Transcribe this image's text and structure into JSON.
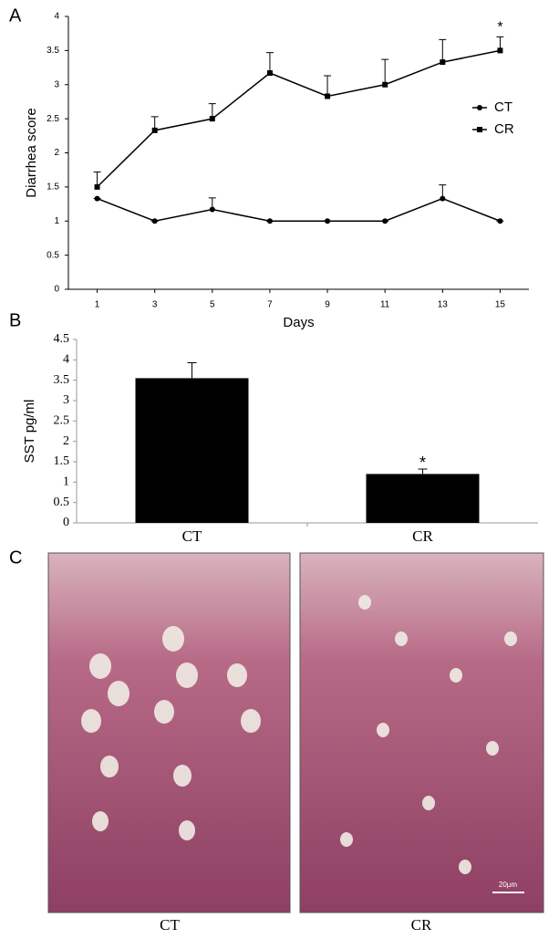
{
  "panels": {
    "a": "A",
    "b": "B",
    "c": "C"
  },
  "chart_data": [
    {
      "type": "line",
      "x_label": "Days",
      "y_label": "Diarrhea score",
      "x": [
        1,
        3,
        5,
        7,
        9,
        11,
        13,
        15
      ],
      "xlim": [
        0,
        16
      ],
      "xticks": [
        1,
        3,
        5,
        7,
        9,
        11,
        13,
        15
      ],
      "ylim": [
        0,
        4
      ],
      "yticks": [
        0,
        0.5,
        1,
        1.5,
        2,
        2.5,
        3,
        3.5,
        4
      ],
      "legend": "right",
      "series": [
        {
          "name": "CT",
          "color": "#000000",
          "marker": "circle",
          "values": [
            1.33,
            1,
            1.17,
            1,
            1,
            1,
            1.33,
            1
          ],
          "errors": [
            0,
            0,
            0.17,
            0,
            0,
            0,
            0.2,
            0
          ]
        },
        {
          "name": "CR",
          "color": "#000000",
          "marker": "square",
          "values": [
            1.5,
            2.33,
            2.5,
            3.17,
            2.83,
            3,
            3.33,
            3.5
          ],
          "errors": [
            0.22,
            0.2,
            0.22,
            0.3,
            0.3,
            0.37,
            0.33,
            0.2
          ]
        }
      ],
      "annotations": [
        {
          "text": "*",
          "series": 1,
          "index": 7
        }
      ]
    },
    {
      "type": "bar",
      "y_label": "SST pg/ml",
      "categories": [
        "CT",
        "CR"
      ],
      "values": [
        3.55,
        1.2
      ],
      "errors": [
        0.38,
        0.12
      ],
      "color": "#000000",
      "ylim": [
        0,
        4.5
      ],
      "yticks": [
        0,
        0.5,
        1,
        1.5,
        2,
        2.5,
        3,
        3.5,
        4,
        4.5
      ],
      "annotations": [
        {
          "text": "*",
          "index": 1
        }
      ]
    }
  ],
  "histology": {
    "labels": [
      "CT",
      "CR"
    ],
    "scale_bar": "20μm"
  }
}
